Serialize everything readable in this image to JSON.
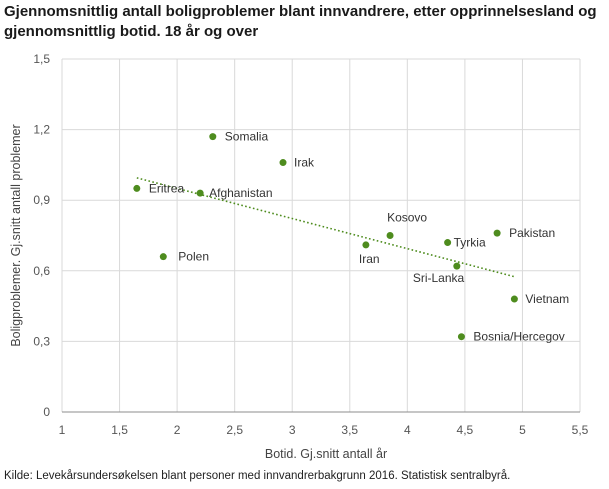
{
  "title": "Gjennomsnittlig antall boligproblemer blant innvandrere, etter opprinnelsesland og gjennomsnittlig botid. 18 år og over",
  "source": "Kilde: Levekårsundersøkelsen blant personer med innvandrerbakgrunn 2016. Statistisk sentralbyrå.",
  "chart_data": {
    "type": "scatter",
    "title": "Gjennomsnittlig antall boligproblemer blant innvandrere, etter opprinnelsesland og gjennomsnittlig botid. 18 år og over",
    "xlabel": "Botid. Gj.snitt antall år",
    "ylabel": "Boligproblemer. Gj.snitt antall problemer",
    "xlim": [
      1,
      5.5
    ],
    "ylim": [
      0,
      1.5
    ],
    "xticks": [
      "1",
      "1,5",
      "2",
      "2,5",
      "3",
      "3,5",
      "4",
      "4,5",
      "5",
      "5,5"
    ],
    "yticks": [
      "0",
      "0,3",
      "0,6",
      "0,9",
      "1,2",
      "1,5"
    ],
    "grid": "vertical and horizontal",
    "marker_color": "#4e8c1e",
    "trendline": {
      "style": "dotted",
      "x": [
        1.65,
        4.93
      ],
      "y": [
        0.995,
        0.575
      ]
    },
    "points": [
      {
        "label": "Somalia",
        "x": 2.31,
        "y": 1.17
      },
      {
        "label": "Irak",
        "x": 2.92,
        "y": 1.06
      },
      {
        "label": "Eritrea",
        "x": 1.65,
        "y": 0.95
      },
      {
        "label": "Afghanistan",
        "x": 2.2,
        "y": 0.93
      },
      {
        "label": "Kosovo",
        "x": 3.85,
        "y": 0.75
      },
      {
        "label": "Iran",
        "x": 3.64,
        "y": 0.71
      },
      {
        "label": "Tyrkia",
        "x": 4.35,
        "y": 0.72
      },
      {
        "label": "Pakistan",
        "x": 4.78,
        "y": 0.76
      },
      {
        "label": "Polen",
        "x": 1.88,
        "y": 0.66
      },
      {
        "label": "Sri-Lanka",
        "x": 4.43,
        "y": 0.62
      },
      {
        "label": "Vietnam",
        "x": 4.93,
        "y": 0.48
      },
      {
        "label": "Bosnia/Hercegov",
        "x": 4.47,
        "y": 0.32
      }
    ]
  }
}
